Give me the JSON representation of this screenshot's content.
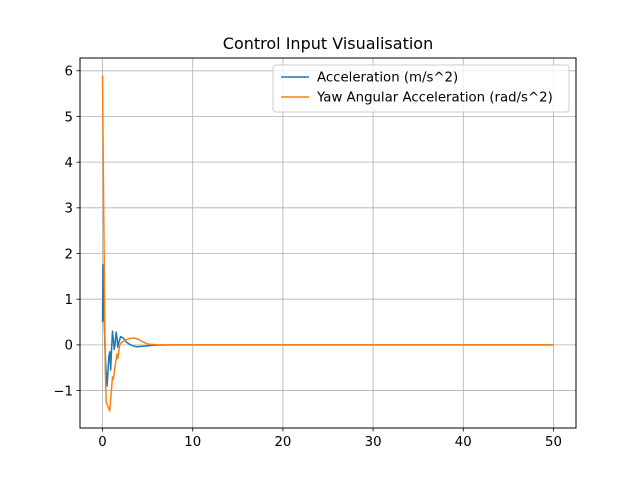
{
  "chart_data": {
    "type": "line",
    "title": "Control Input Visualisation",
    "xlabel": "",
    "ylabel": "",
    "xlim": [
      -2.5,
      52.5
    ],
    "ylim": [
      -1.82,
      6.28
    ],
    "x_ticks": [
      0,
      10,
      20,
      30,
      40,
      50
    ],
    "y_ticks": [
      -1,
      0,
      1,
      2,
      3,
      4,
      5,
      6
    ],
    "x_tick_labels": [
      "0",
      "10",
      "20",
      "30",
      "40",
      "50"
    ],
    "y_tick_labels": [
      "−1",
      "0",
      "1",
      "2",
      "3",
      "4",
      "5",
      "6"
    ],
    "grid": true,
    "legend_position": "upper right",
    "series": [
      {
        "name": "Acceleration (m/s^2)",
        "color": "#1f77b4",
        "points": [
          [
            0,
            0.5
          ],
          [
            0.05,
            1.75
          ],
          [
            0.1,
            1.2
          ],
          [
            0.2,
            0.4
          ],
          [
            0.3,
            -0.2
          ],
          [
            0.4,
            -0.6
          ],
          [
            0.5,
            -0.9
          ],
          [
            0.6,
            -0.6
          ],
          [
            0.7,
            -0.25
          ],
          [
            0.8,
            -0.15
          ],
          [
            0.9,
            -0.55
          ],
          [
            1.0,
            -0.1
          ],
          [
            1.1,
            0.3
          ],
          [
            1.2,
            0.1
          ],
          [
            1.3,
            -0.1
          ],
          [
            1.4,
            0.05
          ],
          [
            1.5,
            0.28
          ],
          [
            1.6,
            0.15
          ],
          [
            1.7,
            -0.05
          ],
          [
            1.8,
            0.05
          ],
          [
            2.0,
            0.18
          ],
          [
            2.3,
            0.15
          ],
          [
            2.7,
            0.05
          ],
          [
            3.2,
            -0.01
          ],
          [
            3.7,
            -0.04
          ],
          [
            4.5,
            -0.03
          ],
          [
            5.5,
            -0.01
          ],
          [
            7,
            0
          ],
          [
            10,
            0
          ],
          [
            20,
            0
          ],
          [
            30,
            0
          ],
          [
            40,
            0
          ],
          [
            50,
            0
          ]
        ]
      },
      {
        "name": "Yaw Angular Acceleration (rad/s^2)",
        "color": "#ff7f0e",
        "points": [
          [
            0,
            5.9
          ],
          [
            0.1,
            3.5
          ],
          [
            0.2,
            1.5
          ],
          [
            0.3,
            -0.5
          ],
          [
            0.4,
            -1.25
          ],
          [
            0.5,
            -1.3
          ],
          [
            0.6,
            -1.35
          ],
          [
            0.8,
            -1.45
          ],
          [
            1.0,
            -0.95
          ],
          [
            1.1,
            -0.7
          ],
          [
            1.2,
            -0.75
          ],
          [
            1.4,
            -0.45
          ],
          [
            1.6,
            -0.2
          ],
          [
            1.7,
            -0.3
          ],
          [
            1.8,
            -0.15
          ],
          [
            1.9,
            0.0
          ],
          [
            2.1,
            0.05
          ],
          [
            2.5,
            0.1
          ],
          [
            3.0,
            0.14
          ],
          [
            3.5,
            0.15
          ],
          [
            4.0,
            0.12
          ],
          [
            4.5,
            0.06
          ],
          [
            5.0,
            0.02
          ],
          [
            6.0,
            0.0
          ],
          [
            8,
            0
          ],
          [
            10,
            0
          ],
          [
            20,
            0
          ],
          [
            30,
            0
          ],
          [
            40,
            0
          ],
          [
            50,
            0
          ]
        ]
      }
    ]
  }
}
